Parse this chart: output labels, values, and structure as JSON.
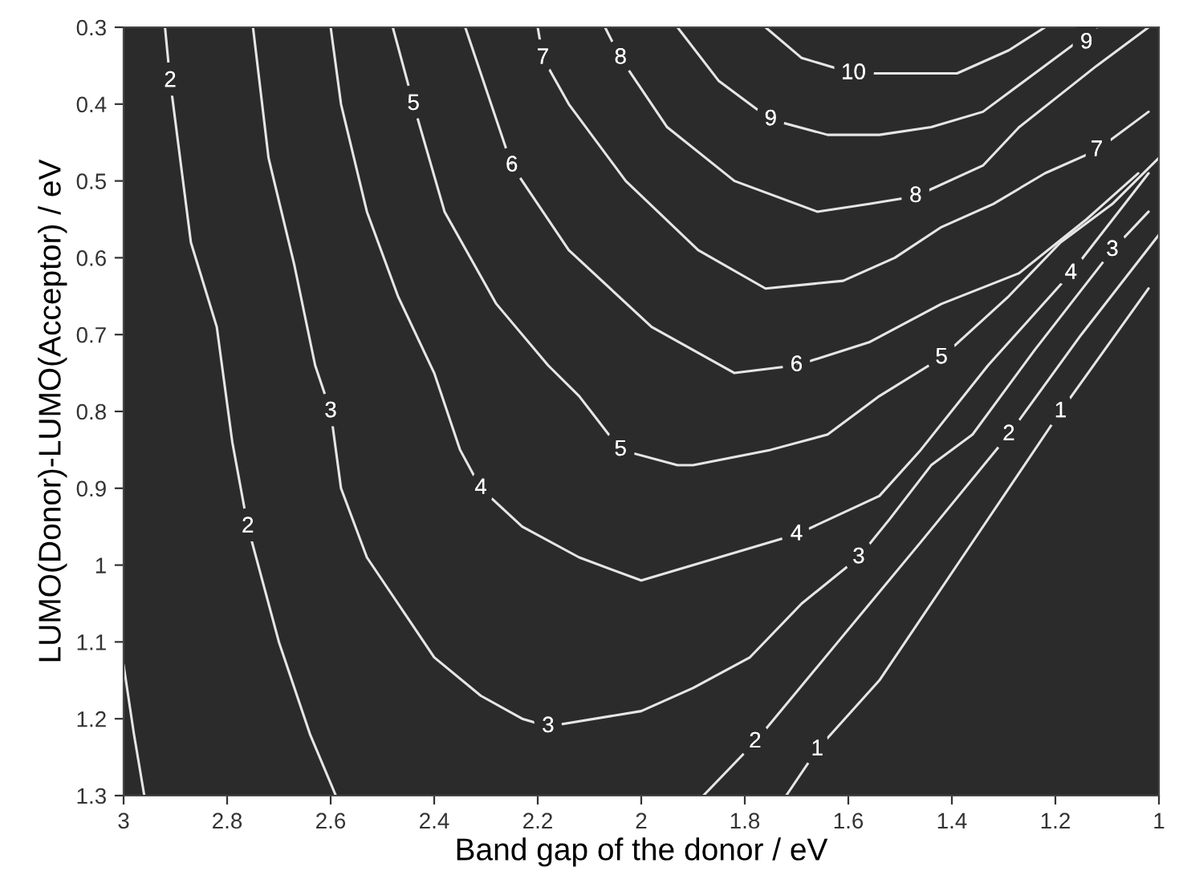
{
  "chart_data": {
    "type": "line",
    "xlabel": "Band gap of the donor / eV",
    "ylabel": "LUMO(Donor)-LUMO(Acceptor) / eV",
    "xlim": [
      3,
      1
    ],
    "xticks": [
      3,
      2.8,
      2.6,
      2.4,
      2.2,
      2,
      1.8,
      1.6,
      1.4,
      1.2,
      1
    ],
    "ylim": [
      1.3,
      0.3
    ],
    "yticks": [
      0.3,
      0.4,
      0.5,
      0.6,
      0.7,
      0.8,
      0.9,
      1,
      1.1,
      1.2,
      1.3
    ],
    "grid": false,
    "series": [
      {
        "color": "#e6e6e6",
        "x": [
          3.0,
          2.98,
          2.96
        ],
        "values": [
          1.13,
          1.22,
          1.3
        ]
      },
      {
        "color": "#e6e6e6",
        "x": [
          1.72,
          1.66,
          1.54,
          1.38,
          1.19,
          1.02
        ],
        "values": [
          1.3,
          1.24,
          1.15,
          0.99,
          0.8,
          0.64
        ]
      },
      {
        "color": "#e6e6e6",
        "x": [
          2.92,
          2.91,
          2.87,
          2.82,
          2.79,
          2.76,
          2.7,
          2.64,
          2.59
        ],
        "values": [
          0.3,
          0.37,
          0.58,
          0.69,
          0.84,
          0.95,
          1.1,
          1.22,
          1.3
        ]
      },
      {
        "color": "#e6e6e6",
        "x": [
          1.88,
          1.78,
          1.62,
          1.46,
          1.29,
          1.15,
          1.0
        ],
        "values": [
          1.3,
          1.23,
          1.1,
          0.97,
          0.83,
          0.7,
          0.57
        ]
      },
      {
        "color": "#e6e6e6",
        "x": [
          2.75,
          2.72,
          2.67,
          2.63,
          2.6,
          2.58,
          2.53,
          2.47,
          2.4,
          2.31,
          2.23,
          2.18,
          2.0,
          1.9,
          1.79,
          1.69,
          1.58,
          1.52,
          1.44,
          1.36,
          1.24,
          1.09,
          1.02
        ],
        "values": [
          0.3,
          0.47,
          0.61,
          0.74,
          0.8,
          0.9,
          0.99,
          1.05,
          1.12,
          1.17,
          1.2,
          1.21,
          1.19,
          1.16,
          1.12,
          1.05,
          0.99,
          0.94,
          0.87,
          0.83,
          0.72,
          0.59,
          0.54
        ]
      },
      {
        "color": "#e6e6e6",
        "x": [
          2.6,
          2.58,
          2.53,
          2.47,
          2.4,
          2.35,
          2.31,
          2.23,
          2.12,
          2.0,
          1.85,
          1.7,
          1.54,
          1.46,
          1.33,
          1.17,
          1.02
        ],
        "values": [
          0.3,
          0.4,
          0.54,
          0.65,
          0.75,
          0.85,
          0.9,
          0.95,
          0.99,
          1.02,
          0.99,
          0.96,
          0.91,
          0.85,
          0.74,
          0.62,
          0.49
        ]
      },
      {
        "color": "#e6e6e6",
        "x": [
          2.48,
          2.44,
          2.38,
          2.28,
          2.18,
          2.12,
          2.04,
          1.93,
          1.9,
          1.75,
          1.64,
          1.54,
          1.42,
          1.29,
          1.19,
          1.09,
          1.0
        ],
        "values": [
          0.3,
          0.4,
          0.54,
          0.66,
          0.74,
          0.78,
          0.85,
          0.87,
          0.87,
          0.85,
          0.83,
          0.78,
          0.73,
          0.65,
          0.58,
          0.53,
          0.47
        ]
      },
      {
        "color": "#e6e6e6",
        "x": [
          2.34,
          2.25,
          2.14,
          1.98,
          1.82,
          1.7,
          1.56,
          1.42,
          1.27,
          1.14,
          1.04
        ],
        "values": [
          0.3,
          0.48,
          0.59,
          0.69,
          0.75,
          0.74,
          0.71,
          0.66,
          0.62,
          0.55,
          0.49
        ]
      },
      {
        "color": "#e6e6e6",
        "x": [
          2.2,
          2.19,
          2.14,
          2.03,
          1.89,
          1.76,
          1.61,
          1.51,
          1.42,
          1.32,
          1.22,
          1.12,
          1.02
        ],
        "values": [
          0.3,
          0.34,
          0.4,
          0.5,
          0.59,
          0.64,
          0.63,
          0.6,
          0.56,
          0.53,
          0.49,
          0.46,
          0.41
        ]
      },
      {
        "color": "#e6e6e6",
        "x": [
          2.07,
          2.04,
          1.95,
          1.82,
          1.66,
          1.56,
          1.47,
          1.34,
          1.27,
          1.12,
          1.02
        ],
        "values": [
          0.3,
          0.34,
          0.43,
          0.5,
          0.54,
          0.53,
          0.52,
          0.48,
          0.43,
          0.35,
          0.3
        ]
      },
      {
        "color": "#e6e6e6",
        "x": [
          1.93,
          1.85,
          1.75,
          1.64,
          1.54,
          1.44,
          1.34,
          1.24,
          1.12
        ],
        "values": [
          0.3,
          0.37,
          0.42,
          0.44,
          0.44,
          0.43,
          0.41,
          0.36,
          0.3
        ]
      },
      {
        "color": "#e6e6e6",
        "x": [
          1.76,
          1.69,
          1.59,
          1.48,
          1.39,
          1.29,
          1.22
        ],
        "values": [
          0.3,
          0.34,
          0.36,
          0.36,
          0.36,
          0.33,
          0.3
        ]
      }
    ],
    "annotations": [
      {
        "text": "2",
        "x": 2.91,
        "y": 0.37
      },
      {
        "text": "2",
        "x": 2.76,
        "y": 0.95
      },
      {
        "text": "3",
        "x": 2.6,
        "y": 0.8
      },
      {
        "text": "3",
        "x": 2.18,
        "y": 1.21
      },
      {
        "text": "3",
        "x": 1.58,
        "y": 0.99
      },
      {
        "text": "3",
        "x": 1.09,
        "y": 0.59
      },
      {
        "text": "4",
        "x": 2.31,
        "y": 0.9
      },
      {
        "text": "4",
        "x": 1.7,
        "y": 0.96
      },
      {
        "text": "4",
        "x": 1.17,
        "y": 0.62
      },
      {
        "text": "5",
        "x": 2.44,
        "y": 0.4
      },
      {
        "text": "5",
        "x": 2.04,
        "y": 0.85
      },
      {
        "text": "5",
        "x": 1.42,
        "y": 0.73
      },
      {
        "text": "6",
        "x": 2.25,
        "y": 0.48
      },
      {
        "text": "6",
        "x": 1.7,
        "y": 0.74
      },
      {
        "text": "7",
        "x": 2.19,
        "y": 0.34
      },
      {
        "text": "7",
        "x": 1.12,
        "y": 0.46
      },
      {
        "text": "8",
        "x": 2.04,
        "y": 0.34
      },
      {
        "text": "8",
        "x": 1.47,
        "y": 0.52
      },
      {
        "text": "9",
        "x": 1.75,
        "y": 0.42
      },
      {
        "text": "9",
        "x": 1.14,
        "y": 0.32
      },
      {
        "text": "10",
        "x": 1.59,
        "y": 0.36
      },
      {
        "text": "1",
        "x": 1.66,
        "y": 1.24
      },
      {
        "text": "1",
        "x": 1.19,
        "y": 0.8
      },
      {
        "text": "2",
        "x": 1.78,
        "y": 1.23
      },
      {
        "text": "2",
        "x": 1.29,
        "y": 0.83
      }
    ]
  }
}
